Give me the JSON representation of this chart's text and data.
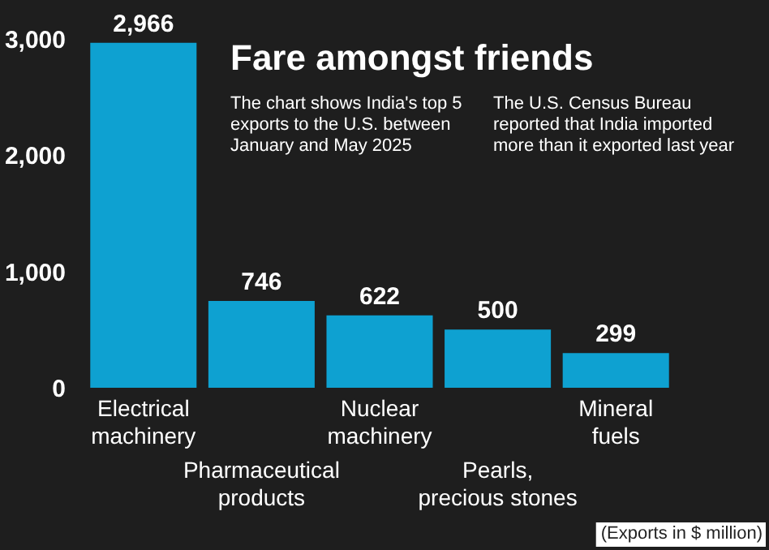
{
  "chart_data": {
    "type": "bar",
    "title": "Fare amongst friends",
    "categories": [
      "Electrical machinery",
      "Pharmaceutical products",
      "Nuclear machinery",
      "Pearls, precious stones",
      "Mineral fuels"
    ],
    "values": [
      2966,
      746,
      622,
      500,
      299
    ],
    "color": "#0ea1d1",
    "ylim": [
      0,
      3000
    ],
    "yticks": [
      0,
      {
        "value": 1000,
        "label": "1,000"
      },
      {
        "value": 2000,
        "label": "2,000"
      },
      {
        "value": 3000,
        "label": "3,000"
      }
    ],
    "value_labels": [
      "2,966",
      "746",
      "622",
      "500",
      "299"
    ],
    "annotations": [
      "The chart shows India's top 5 exports to the U.S. between January and May 2025",
      "The U.S. Census Bureau reported that India imported more than it exported last year",
      "(Exports in $ million)"
    ]
  }
}
